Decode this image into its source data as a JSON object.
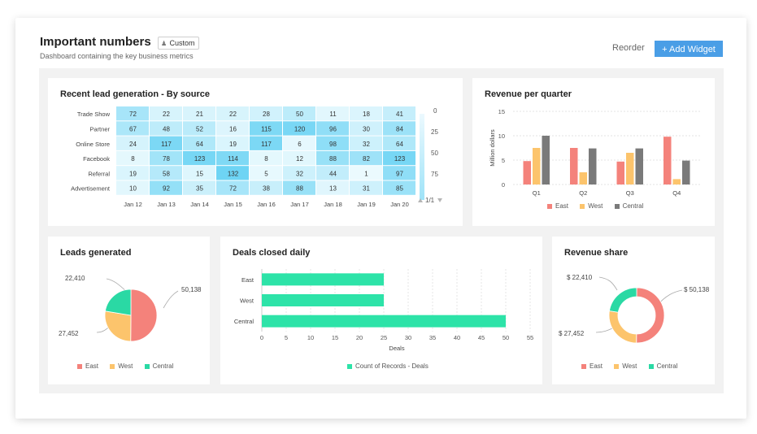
{
  "header": {
    "title": "Important numbers",
    "badge": "Custom",
    "badge_icon": "user-icon",
    "subtitle": "Dashboard containing the key business metrics",
    "reorder_label": "Reorder",
    "add_widget_label": "+ Add Widget"
  },
  "colors": {
    "east": "#f4827b",
    "west": "#fcc46c",
    "central": "#2ad9a4",
    "central_bar": "#7a7a7a",
    "deals": "#2de3a8",
    "accent": "#4a9ee6"
  },
  "widgets": {
    "heatmap": {
      "title": "Recent lead generation - By source",
      "pager": "1/1",
      "scale_labels": [
        "0",
        "25",
        "50",
        "75"
      ]
    },
    "revenue_quarter": {
      "title": "Revenue per quarter",
      "legend": [
        "East",
        "West",
        "Central"
      ]
    },
    "leads": {
      "title": "Leads generated",
      "labels": [
        "22,410",
        "50,138",
        "27,452"
      ],
      "legend": [
        "East",
        "West",
        "Central"
      ]
    },
    "deals": {
      "title": "Deals closed daily",
      "legend": "Count of Records - Deals"
    },
    "revenue_share": {
      "title": "Revenue share",
      "labels": [
        "$ 22,410",
        "$ 50,138",
        "$ 27,452"
      ],
      "legend": [
        "East",
        "West",
        "Central"
      ]
    }
  },
  "chart_data": [
    {
      "type": "heatmap",
      "title": "Recent lead generation - By source",
      "rows": [
        "Trade Show",
        "Partner",
        "Online Store",
        "Facebook",
        "Referral",
        "Advertisement"
      ],
      "columns": [
        "Jan 12",
        "Jan 13",
        "Jan 14",
        "Jan 15",
        "Jan 16",
        "Jan 17",
        "Jan 18",
        "Jan 19",
        "Jan 20"
      ],
      "values": [
        [
          72,
          22,
          21,
          22,
          28,
          50,
          11,
          18,
          41
        ],
        [
          67,
          48,
          52,
          16,
          115,
          120,
          96,
          30,
          84
        ],
        [
          24,
          117,
          64,
          19,
          117,
          6,
          98,
          32,
          64
        ],
        [
          8,
          78,
          123,
          114,
          8,
          12,
          88,
          82,
          123
        ],
        [
          19,
          58,
          15,
          132,
          5,
          32,
          44,
          1,
          97
        ],
        [
          10,
          92,
          35,
          72,
          38,
          88,
          13,
          31,
          85
        ]
      ]
    },
    {
      "type": "bar",
      "title": "Revenue per quarter",
      "categories": [
        "Q1",
        "Q2",
        "Q3",
        "Q4"
      ],
      "ylabel": "Million dollars",
      "ylim": [
        0,
        15
      ],
      "yticks": [
        0,
        5,
        10,
        15
      ],
      "series": [
        {
          "name": "East",
          "values": [
            4.8,
            7.5,
            4.7,
            9.8
          ]
        },
        {
          "name": "West",
          "values": [
            7.5,
            2.5,
            6.5,
            1.1
          ]
        },
        {
          "name": "Central",
          "values": [
            10,
            7.4,
            7.4,
            4.9
          ]
        }
      ]
    },
    {
      "type": "pie",
      "title": "Leads generated",
      "categories": [
        "East",
        "West",
        "Central"
      ],
      "values": [
        50138,
        27452,
        22410
      ]
    },
    {
      "type": "bar",
      "orientation": "horizontal",
      "title": "Deals closed daily",
      "categories": [
        "East",
        "West",
        "Central"
      ],
      "series": [
        {
          "name": "Count of Records - Deals",
          "values": [
            25,
            25,
            50
          ]
        }
      ],
      "xlabel": "Deals",
      "xlim": [
        0,
        55
      ],
      "xticks": [
        0,
        5,
        10,
        15,
        20,
        25,
        30,
        35,
        40,
        45,
        50,
        55
      ]
    },
    {
      "type": "pie",
      "subtype": "donut",
      "title": "Revenue share",
      "categories": [
        "East",
        "West",
        "Central"
      ],
      "values": [
        50138,
        27452,
        22410
      ]
    }
  ]
}
